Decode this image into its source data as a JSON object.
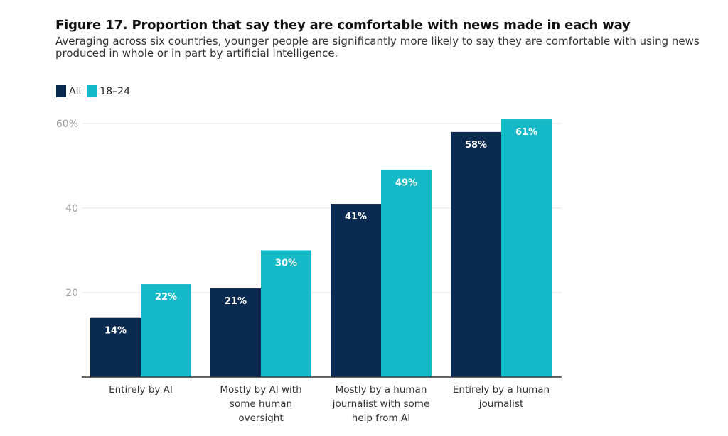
{
  "header": {
    "title": "Figure 17. Proportion that say they are comfortable with news made in each way",
    "subtitle": "Averaging across six countries, younger people are significantly more likely to say they are comfortable with using news produced in whole or in part by artificial intelligence."
  },
  "legend": [
    {
      "label": "All",
      "color": "#0b2a4f"
    },
    {
      "label": "18–24",
      "color": "#16b9c8"
    }
  ],
  "chart_data": {
    "type": "bar",
    "title": "Figure 17. Proportion that say they are comfortable with news made in each way",
    "subtitle": "Averaging across six countries, younger people are significantly more likely to say they are comfortable with using news produced in whole or in part by artificial intelligence.",
    "categories": [
      [
        "Entirely by AI"
      ],
      [
        "Mostly by AI with",
        "some human",
        "oversight"
      ],
      [
        "Mostly by a human",
        "journalist with some",
        "help from AI"
      ],
      [
        "Entirely by a human",
        "journalist"
      ]
    ],
    "series": [
      {
        "name": "All",
        "color": "#0b2a4f",
        "values": [
          14,
          21,
          41,
          58
        ]
      },
      {
        "name": "18–24",
        "color": "#16b9c8",
        "values": [
          22,
          30,
          49,
          61
        ]
      }
    ],
    "value_suffix": "%",
    "ylim": [
      0,
      60
    ],
    "yticks": [
      {
        "value": 20,
        "label": "20"
      },
      {
        "value": 40,
        "label": "40"
      },
      {
        "value": 60,
        "label": "60%"
      }
    ],
    "grid": true,
    "legend_position": "top-left"
  }
}
